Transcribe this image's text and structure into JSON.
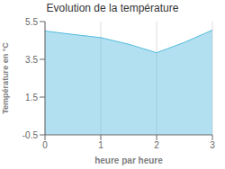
{
  "chart_data": {
    "type": "area",
    "title": "Evolution de la température",
    "xlabel": "heure par heure",
    "ylabel": "Température en °C",
    "x": [
      0,
      0.5,
      1,
      1.5,
      2,
      2.5,
      3
    ],
    "values": [
      5.0,
      4.82,
      4.65,
      4.3,
      3.85,
      4.4,
      5.05
    ],
    "xlim": [
      0,
      3
    ],
    "ylim": [
      -0.5,
      5.5
    ],
    "xticks": [
      0,
      1,
      2,
      3
    ],
    "yticks": [
      -0.5,
      1.5,
      3.5,
      5.5
    ],
    "color": "#55bbdd",
    "grid": "x"
  }
}
